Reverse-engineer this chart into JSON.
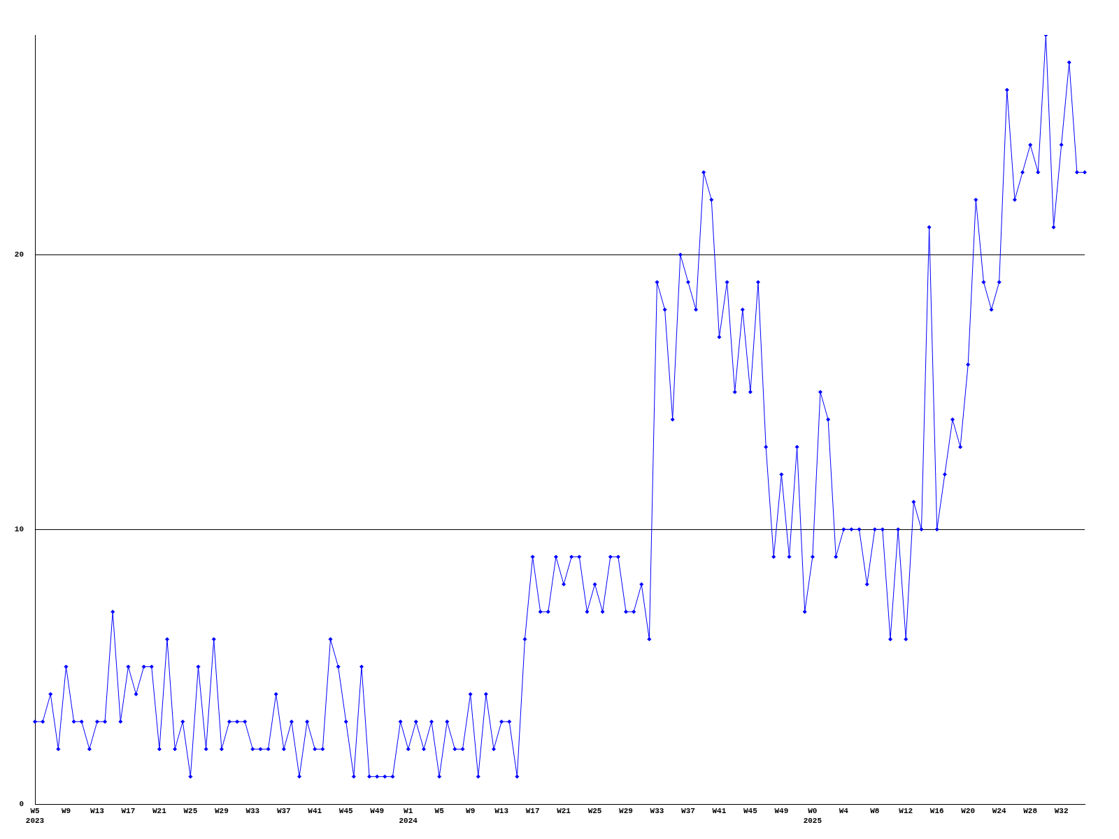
{
  "chart_data": {
    "type": "line",
    "categories": [
      "W5\n2023",
      null,
      null,
      null,
      "W9",
      null,
      null,
      null,
      "W13",
      null,
      null,
      null,
      "W17",
      null,
      null,
      null,
      "W21",
      null,
      null,
      null,
      "W25",
      null,
      null,
      null,
      "W29",
      null,
      null,
      null,
      "W33",
      null,
      null,
      null,
      "W37",
      null,
      null,
      null,
      "W41",
      null,
      null,
      null,
      "W45",
      null,
      null,
      null,
      "W49",
      null,
      null,
      null,
      "W1\n2024",
      null,
      null,
      null,
      "W5",
      null,
      null,
      null,
      "W9",
      null,
      null,
      null,
      "W13",
      null,
      null,
      null,
      "W17",
      null,
      null,
      null,
      "W21",
      null,
      null,
      null,
      "W25",
      null,
      null,
      null,
      "W29",
      null,
      null,
      null,
      "W33",
      null,
      null,
      null,
      "W37",
      null,
      null,
      null,
      "W41",
      null,
      null,
      null,
      "W45",
      null,
      null,
      null,
      "W49",
      null,
      null,
      null,
      "W0\n2025",
      null,
      null,
      null,
      "W4",
      null,
      null,
      null,
      "W8",
      null,
      null,
      null,
      "W12",
      null,
      null,
      null,
      "W16",
      null,
      null,
      null,
      "W20",
      null,
      null,
      null,
      "W24",
      null,
      null,
      null,
      "W28",
      null,
      null,
      null,
      "W32",
      null,
      null,
      null
    ],
    "series": [
      {
        "color": "#0000ff",
        "values": [
          3,
          3,
          4,
          2,
          5,
          3,
          3,
          2,
          3,
          3,
          7,
          3,
          5,
          4,
          5,
          5,
          2,
          6,
          2,
          3,
          1,
          5,
          2,
          6,
          2,
          3,
          3,
          3,
          2,
          2,
          2,
          4,
          2,
          3,
          1,
          3,
          2,
          2,
          6,
          5,
          3,
          1,
          5,
          1,
          1,
          1,
          1,
          3,
          2,
          3,
          2,
          3,
          1,
          3,
          2,
          2,
          4,
          1,
          4,
          2,
          3,
          3,
          1,
          6,
          9,
          7,
          7,
          9,
          8,
          9,
          9,
          7,
          8,
          7,
          9,
          9,
          7,
          7,
          8,
          6,
          19,
          18,
          14,
          20,
          19,
          18,
          23,
          22,
          17,
          19,
          15,
          18,
          15,
          19,
          13,
          9,
          12,
          9,
          13,
          7,
          9,
          15,
          14,
          9,
          10,
          10,
          10,
          8,
          10,
          10,
          6,
          10,
          6,
          11,
          10,
          21,
          10,
          12,
          14,
          13,
          16,
          22,
          19,
          18,
          19,
          26,
          22,
          23,
          24,
          23,
          28,
          21,
          24,
          27,
          23,
          23
        ]
      }
    ],
    "ylim": [
      0,
      28
    ],
    "yticks": [
      0,
      10,
      20
    ],
    "grid": "y",
    "legend": false,
    "marker": "diamond",
    "line_style": "solid"
  }
}
